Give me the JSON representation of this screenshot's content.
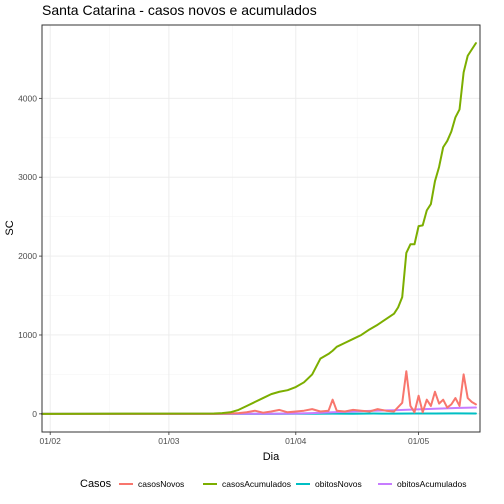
{
  "chart_data": {
    "type": "line",
    "title": "Santa Catarina - casos novos e acumulados",
    "xlabel": "Dia",
    "ylabel": "SC",
    "x_start": "2020-01-30",
    "x_end": "2020-05-16",
    "x_ticks": [
      {
        "date": "2020-02-01",
        "label": "01/02"
      },
      {
        "date": "2020-03-01",
        "label": "01/03"
      },
      {
        "date": "2020-04-01",
        "label": "01/04"
      },
      {
        "date": "2020-05-01",
        "label": "01/05"
      }
    ],
    "ylim": [
      -230,
      4930
    ],
    "y_ticks": [
      0,
      1000,
      2000,
      3000,
      4000
    ],
    "grid": true,
    "legend": {
      "position": "bottom",
      "title": "Casos",
      "entries": [
        "casosNovos",
        "casosAcumulados",
        "obitosNovos",
        "obitosAcumulados"
      ]
    },
    "colors": {
      "casosNovos": "#F8766D",
      "casosAcumulados": "#7CAE00",
      "obitosNovos": "#00BFC4",
      "obitosAcumulados": "#C77CFF"
    },
    "series": [
      {
        "name": "casosNovos",
        "x": [
          "2020-01-30",
          "2020-03-12",
          "2020-03-16",
          "2020-03-18",
          "2020-03-20",
          "2020-03-22",
          "2020-03-24",
          "2020-03-26",
          "2020-03-28",
          "2020-03-30",
          "2020-04-01",
          "2020-04-03",
          "2020-04-05",
          "2020-04-07",
          "2020-04-09",
          "2020-04-10",
          "2020-04-11",
          "2020-04-13",
          "2020-04-15",
          "2020-04-17",
          "2020-04-19",
          "2020-04-21",
          "2020-04-23",
          "2020-04-25",
          "2020-04-27",
          "2020-04-28",
          "2020-04-29",
          "2020-04-30",
          "2020-05-01",
          "2020-05-02",
          "2020-05-03",
          "2020-05-04",
          "2020-05-05",
          "2020-05-06",
          "2020-05-07",
          "2020-05-08",
          "2020-05-09",
          "2020-05-10",
          "2020-05-11",
          "2020-05-12",
          "2020-05-13",
          "2020-05-14",
          "2020-05-15"
        ],
        "values": [
          0,
          0,
          5,
          10,
          20,
          40,
          15,
          30,
          50,
          20,
          30,
          40,
          60,
          30,
          40,
          180,
          40,
          30,
          50,
          40,
          30,
          60,
          40,
          30,
          140,
          540,
          100,
          20,
          230,
          20,
          180,
          100,
          280,
          130,
          180,
          80,
          120,
          200,
          100,
          500,
          200,
          150,
          120
        ]
      },
      {
        "name": "casosAcumulados",
        "x": [
          "2020-01-30",
          "2020-03-12",
          "2020-03-14",
          "2020-03-16",
          "2020-03-18",
          "2020-03-20",
          "2020-03-22",
          "2020-03-24",
          "2020-03-26",
          "2020-03-28",
          "2020-03-30",
          "2020-04-01",
          "2020-04-03",
          "2020-04-05",
          "2020-04-07",
          "2020-04-09",
          "2020-04-10",
          "2020-04-11",
          "2020-04-13",
          "2020-04-15",
          "2020-04-17",
          "2020-04-19",
          "2020-04-21",
          "2020-04-23",
          "2020-04-25",
          "2020-04-26",
          "2020-04-27",
          "2020-04-28",
          "2020-04-29",
          "2020-04-30",
          "2020-05-01",
          "2020-05-02",
          "2020-05-03",
          "2020-05-04",
          "2020-05-05",
          "2020-05-06",
          "2020-05-07",
          "2020-05-08",
          "2020-05-09",
          "2020-05-10",
          "2020-05-11",
          "2020-05-12",
          "2020-05-13",
          "2020-05-15"
        ],
        "values": [
          0,
          5,
          10,
          20,
          50,
          100,
          150,
          200,
          250,
          280,
          300,
          340,
          400,
          500,
          700,
          760,
          800,
          850,
          900,
          950,
          1000,
          1070,
          1130,
          1200,
          1270,
          1350,
          1480,
          2040,
          2150,
          2150,
          2380,
          2390,
          2580,
          2660,
          2950,
          3130,
          3380,
          3460,
          3580,
          3760,
          3860,
          4330,
          4540,
          4700
        ]
      },
      {
        "name": "obitosNovos",
        "x": [
          "2020-01-30",
          "2020-03-26",
          "2020-04-01",
          "2020-04-05",
          "2020-04-10",
          "2020-04-15",
          "2020-04-20",
          "2020-04-25",
          "2020-04-30",
          "2020-05-05",
          "2020-05-10",
          "2020-05-15"
        ],
        "values": [
          0,
          0,
          1,
          2,
          3,
          2,
          4,
          3,
          5,
          4,
          6,
          5
        ]
      },
      {
        "name": "obitosAcumulados",
        "x": [
          "2020-01-30",
          "2020-03-26",
          "2020-04-01",
          "2020-04-05",
          "2020-04-10",
          "2020-04-15",
          "2020-04-20",
          "2020-04-25",
          "2020-04-30",
          "2020-05-05",
          "2020-05-10",
          "2020-05-15"
        ],
        "values": [
          0,
          1,
          5,
          10,
          20,
          30,
          40,
          45,
          55,
          65,
          75,
          80
        ]
      }
    ]
  }
}
